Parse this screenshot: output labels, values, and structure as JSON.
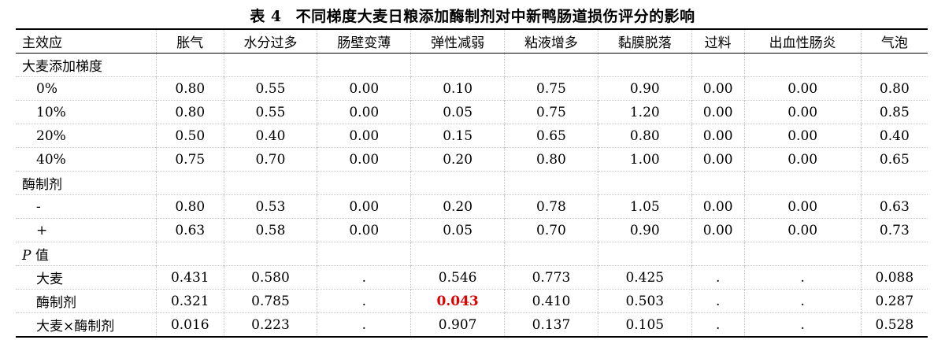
{
  "caption": {
    "number": "表 4",
    "title": "不同梯度大麦日粮添加酶制剂对中新鸭肠道损伤评分的影响"
  },
  "columns": [
    "主效应",
    "胀气",
    "水分过多",
    "肠壁变薄",
    "弹性减弱",
    "粘液增多",
    "黏膜脱落",
    "过料",
    "出血性肠炎",
    "气泡"
  ],
  "sections": [
    {
      "label": "大麦添加梯度",
      "rows": [
        {
          "label": "0%",
          "values": [
            "0.80",
            "0.55",
            "0.00",
            "0.10",
            "0.75",
            "0.90",
            "0.00",
            "0.00",
            "0.80"
          ]
        },
        {
          "label": "10%",
          "values": [
            "0.80",
            "0.55",
            "0.00",
            "0.05",
            "0.75",
            "1.20",
            "0.00",
            "0.00",
            "0.85"
          ]
        },
        {
          "label": "20%",
          "values": [
            "0.50",
            "0.40",
            "0.00",
            "0.15",
            "0.65",
            "0.80",
            "0.00",
            "0.00",
            "0.40"
          ]
        },
        {
          "label": "40%",
          "values": [
            "0.75",
            "0.70",
            "0.00",
            "0.20",
            "0.80",
            "1.00",
            "0.00",
            "0.00",
            "0.65"
          ]
        }
      ]
    },
    {
      "label": "酶制剂",
      "rows": [
        {
          "label": "-",
          "values": [
            "0.80",
            "0.53",
            "0.00",
            "0.20",
            "0.78",
            "1.05",
            "0.00",
            "0.00",
            "0.63"
          ]
        },
        {
          "label": "+",
          "values": [
            "0.63",
            "0.58",
            "0.00",
            "0.05",
            "0.70",
            "0.90",
            "0.00",
            "0.00",
            "0.73"
          ]
        }
      ]
    },
    {
      "label_italic": "P",
      "label_rest": " 值",
      "rows": [
        {
          "label": "大麦",
          "values": [
            "0.431",
            "0.580",
            ".",
            "0.546",
            "0.773",
            "0.425",
            ".",
            ".",
            "0.088"
          ]
        },
        {
          "label": "酶制剂",
          "values": [
            "0.321",
            "0.785",
            ".",
            "0.043",
            "0.410",
            "0.503",
            ".",
            ".",
            "0.287"
          ],
          "highlight_index": 3
        },
        {
          "label": "大麦×酶制剂",
          "values": [
            "0.016",
            "0.223",
            ".",
            "0.907",
            "0.137",
            "0.105",
            ".",
            ".",
            "0.528"
          ]
        }
      ]
    }
  ],
  "colors": {
    "significant": "#e00000",
    "text": "#000000"
  }
}
